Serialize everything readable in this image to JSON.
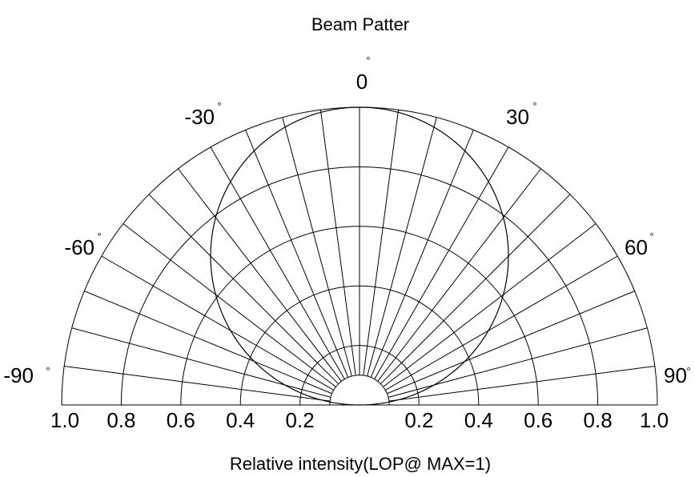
{
  "chart_data": {
    "type": "polar",
    "title": "Beam Patter",
    "xlabel": "Relative intensity(LOP@ MAX=1)",
    "radial_ticks": [
      "1.0",
      "0.8",
      "0.6",
      "0.4",
      "0.2",
      "0.2",
      "0.4",
      "0.6",
      "0.8",
      "1.0"
    ],
    "radial_values": [
      0.2,
      0.4,
      0.6,
      0.8,
      1.0
    ],
    "angle_ticks": [
      -90,
      -60,
      -30,
      0,
      30,
      60,
      90
    ],
    "angle_labels": [
      "-90",
      "-60",
      "-30",
      "0",
      "30",
      "60",
      "90"
    ],
    "degree_symbol": "°",
    "spoke_step_deg": 7.5,
    "angle_range": [
      -90,
      90
    ],
    "series": [
      {
        "pattern": "cosine",
        "angles": [
          -90,
          -75,
          -60,
          -45,
          -30,
          -15,
          0,
          15,
          30,
          45,
          60,
          75,
          90
        ],
        "values": [
          0.0,
          0.26,
          0.5,
          0.71,
          0.87,
          0.97,
          1.0,
          0.97,
          0.87,
          0.71,
          0.5,
          0.26,
          0.0
        ]
      }
    ]
  }
}
